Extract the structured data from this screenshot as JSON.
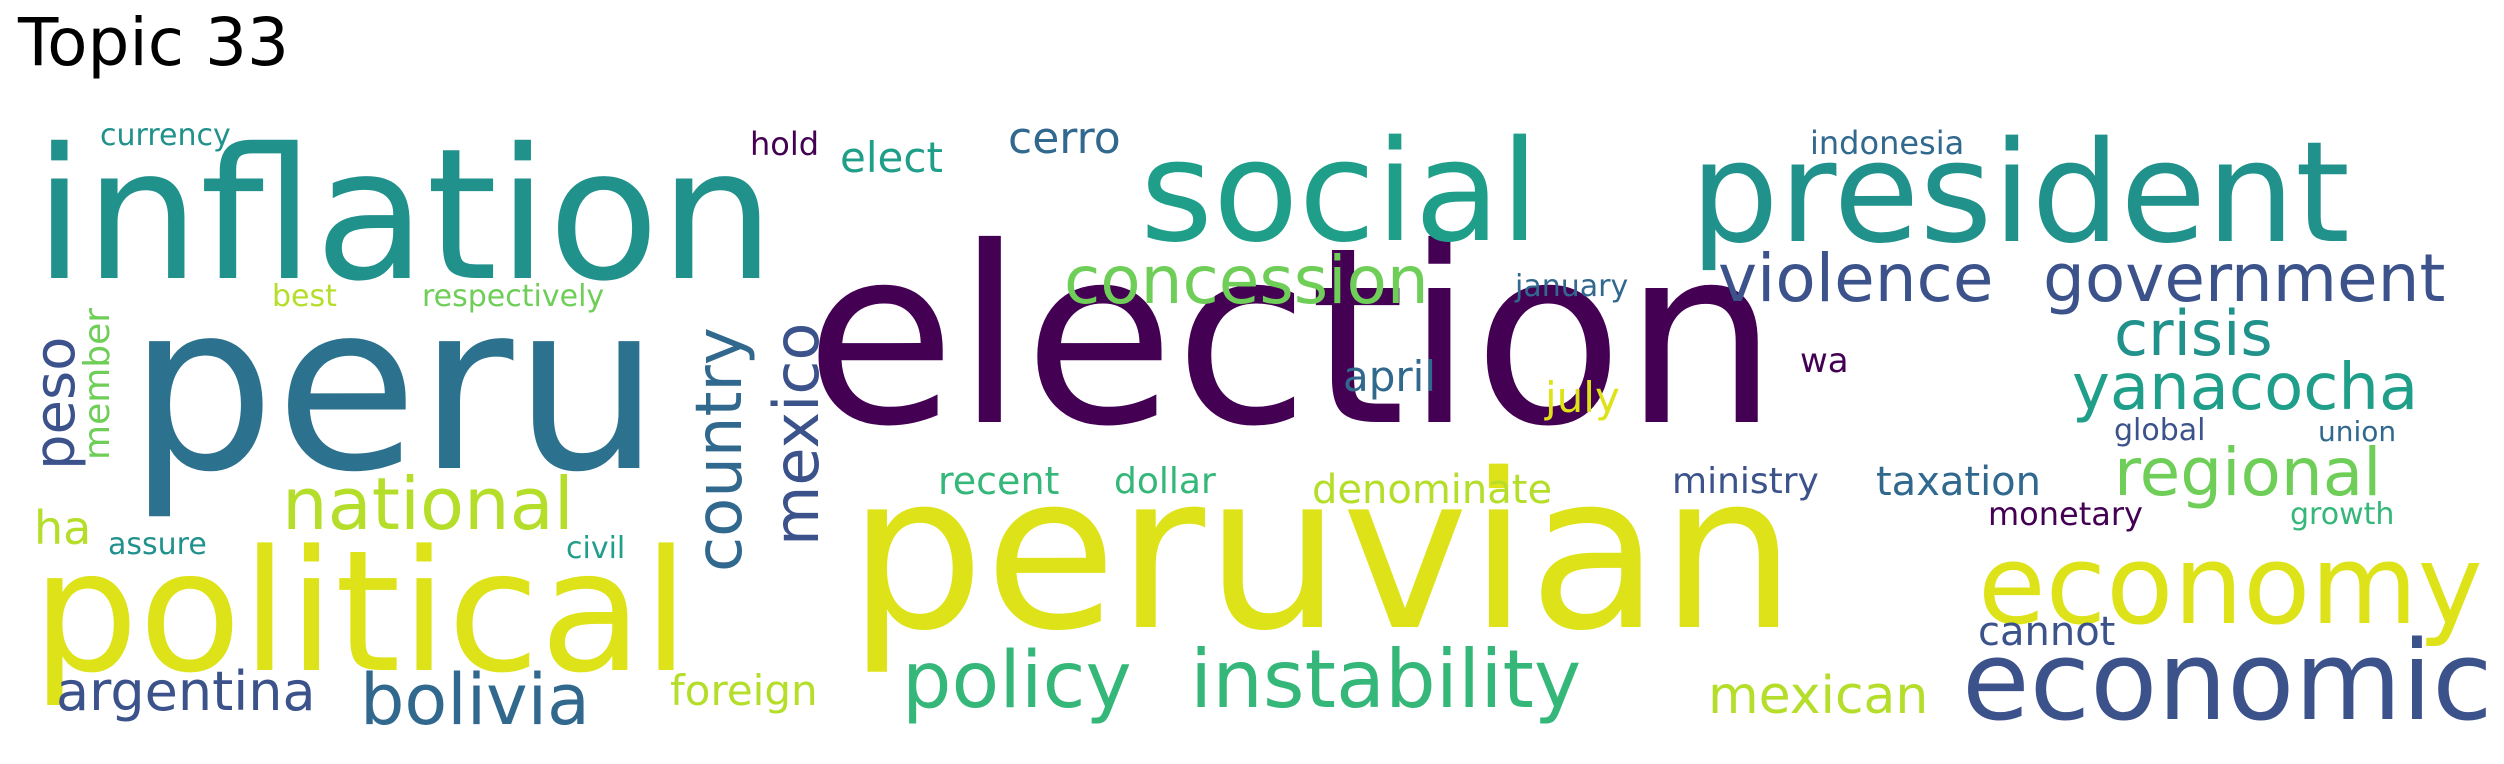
{
  "title": "Topic 33",
  "colors": {
    "dark_purple": "#440154",
    "indigo": "#3b528b",
    "blue": "#31688e",
    "teal_blue": "#2c728e",
    "teal": "#21918c",
    "sea_green": "#1f9e89",
    "green": "#35b779",
    "light_green": "#6ece58",
    "lime": "#b5de2b",
    "yellow": "#dde318"
  },
  "words": {
    "election": "election",
    "peruvian": "peruvian",
    "peru": "peru",
    "inflation": "inflation",
    "political": "political",
    "social": "social",
    "president": "president",
    "economic": "economic",
    "economy": "economy",
    "instability": "instability",
    "concession": "concession",
    "violence": "violence",
    "government": "government",
    "policy": "policy",
    "bolivia": "bolivia",
    "national": "national",
    "yanacocha": "yanacocha",
    "regional": "regional",
    "country": "country",
    "mexico": "mexico",
    "crisis": "crisis",
    "argentina": "argentina",
    "mexican": "mexican",
    "peso": "peso",
    "cerro": "cerro",
    "elect": "elect",
    "foreign": "foreign",
    "april": "april",
    "july": "july",
    "denominate": "denominate",
    "taxation": "taxation",
    "ministry": "ministry",
    "recent": "recent",
    "dollar": "dollar",
    "cannot": "cannot",
    "ha": "ha",
    "monetary": "monetary",
    "member": "member",
    "currency": "currency",
    "hold": "hold",
    "indonesia": "indonesia",
    "january": "january",
    "wa": "wa",
    "global": "global",
    "union": "union",
    "growth": "growth",
    "best": "best",
    "respectively": "respectively",
    "assure": "assure",
    "civil": "civil"
  }
}
